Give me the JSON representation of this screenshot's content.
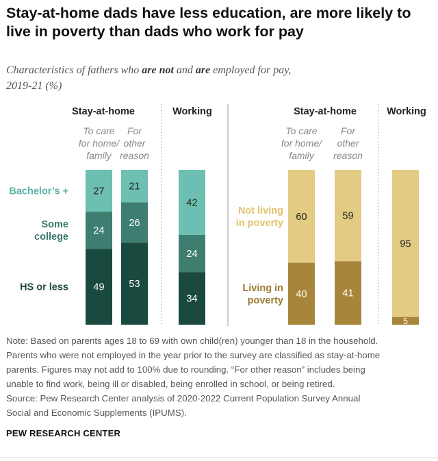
{
  "title": "Stay-at-home dads have less education, are more likely to live in poverty than dads who work for pay",
  "subtitle": {
    "part1": "Characteristics of fathers who ",
    "bold1": "are not",
    "part2": " and ",
    "bold2": "are",
    "part3": " employed for pay,",
    "line2": "2019-21 (%)"
  },
  "notes": [
    "Note: Based on parents ages 18 to 69 with own child(ren) younger than 18 in the household.",
    "Parents who were not employed in the year prior to the survey are classified as stay-at-home",
    "parents. Figures may not add to 100% due to rounding. “For other reason” includes being",
    "unable to find work, being ill or disabled, being enrolled in school, or being retired.",
    "Source: Pew Research Center analysis of 2020-2022 Current Population Survey Annual",
    "Social and Economic Supplements (IPUMS)."
  ],
  "brand": "PEW RESEARCH CENTER",
  "chart_data": [
    {
      "type": "bar",
      "stacked": true,
      "panel": "education",
      "group_headers": [
        "Stay-at-home",
        "Working"
      ],
      "categories": [
        [
          "To care",
          "for home/",
          "family"
        ],
        [
          "For",
          "other",
          "reason"
        ],
        []
      ],
      "series": [
        {
          "name": "Bachelor's +",
          "label_lines": [
            "Bachelor’s +"
          ],
          "color": "#6cbfb1",
          "text_color": "#222222",
          "label_color": "#5cb3a5",
          "values": [
            27,
            21,
            42
          ]
        },
        {
          "name": "Some college",
          "label_lines": [
            "Some",
            "college"
          ],
          "color": "#3e7e70",
          "text_color": "#ffffff",
          "label_color": "#3b7a6c",
          "values": [
            24,
            26,
            24
          ]
        },
        {
          "name": "HS or less",
          "label_lines": [
            "HS or less"
          ],
          "color": "#1a4a3f",
          "text_color": "#ffffff",
          "label_color": "#1f4a40",
          "values": [
            49,
            53,
            34
          ]
        }
      ],
      "ylim": [
        0,
        100
      ]
    },
    {
      "type": "bar",
      "stacked": true,
      "panel": "poverty",
      "group_headers": [
        "Stay-at-home",
        "Working"
      ],
      "categories": [
        [
          "To care",
          "for home/",
          "family"
        ],
        [
          "For",
          "other",
          "reason"
        ],
        []
      ],
      "series": [
        {
          "name": "Not living in poverty",
          "label_lines": [
            "Not living",
            "in poverty"
          ],
          "color": "#e3cb84",
          "text_color": "#222222",
          "label_color": "#e3c26a",
          "values": [
            60,
            59,
            95
          ]
        },
        {
          "name": "Living in poverty",
          "label_lines": [
            "Living in",
            "poverty"
          ],
          "color": "#a7863b",
          "text_color": "#ffffff",
          "label_color": "#9a7a2e",
          "values": [
            40,
            41,
            5
          ]
        }
      ],
      "ylim": [
        0,
        100
      ]
    }
  ]
}
